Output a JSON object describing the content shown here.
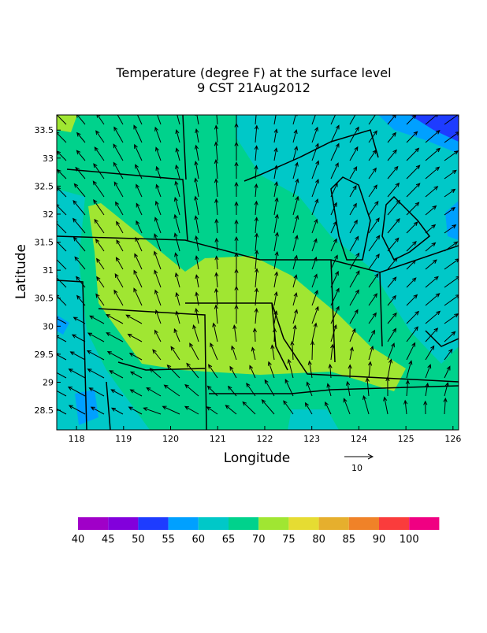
{
  "title": [
    "Temperature (degree F) at the surface level",
    "9 CST 21Aug2012"
  ],
  "map": {
    "xlabel": "Longitude",
    "ylabel": "Latitude",
    "xlim": [
      117.58,
      126.12
    ],
    "ylim": [
      28.15,
      33.77
    ],
    "xticks": [
      118,
      119,
      120,
      121,
      122,
      123,
      124,
      125,
      126
    ],
    "yticks": [
      28.5,
      29,
      29.5,
      30,
      30.5,
      31,
      31.5,
      32,
      32.5,
      33,
      33.5
    ],
    "vector_reference": "10"
  },
  "colorbar": {
    "levels": [
      40,
      45,
      50,
      55,
      60,
      65,
      70,
      75,
      80,
      85,
      90,
      100
    ],
    "labels": [
      "40",
      "45",
      "50",
      "55",
      "60",
      "65",
      "70",
      "75",
      "80",
      "85",
      "90",
      "100"
    ],
    "colors": [
      "#a000c8",
      "#8200dc",
      "#1e3cff",
      "#00a0ff",
      "#00c8c8",
      "#00d28c",
      "#a0e632",
      "#e6dc32",
      "#e6af2d",
      "#f08228",
      "#fa3c3c",
      "#f00082"
    ]
  }
}
